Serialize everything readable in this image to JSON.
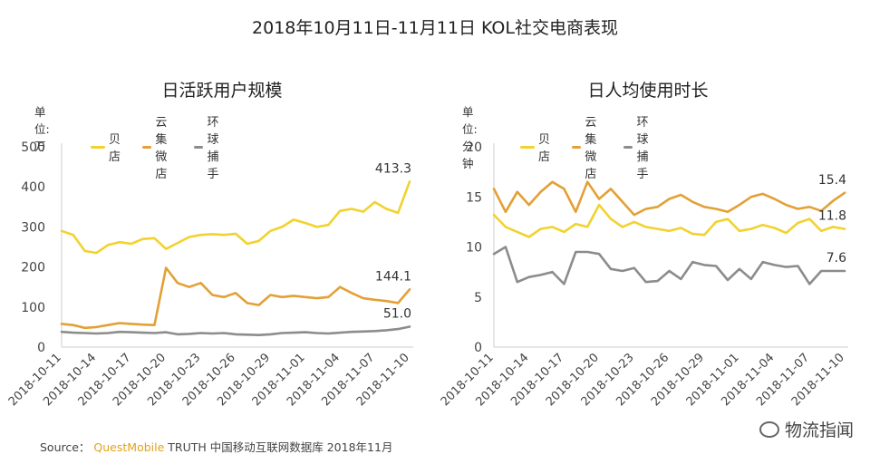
{
  "page_title": "2018年10月11日-11月11日 KOL社交电商表现",
  "source": {
    "prefix": "Source：",
    "brand": "QuestMobile",
    "suffix": " TRUTH 中国移动互联网数据库 2018年11月"
  },
  "watermark": "物流指闻",
  "colors": {
    "贝店": "#f2d22e",
    "云集微店": "#e3a035",
    "环球捕手": "#8c8c8c",
    "axis": "#cccccc",
    "text": "#333333"
  },
  "chart_data": [
    {
      "type": "line",
      "title": "日活跃用户规模",
      "unit_label": "单位: 万",
      "x_tick_labels": [
        "2018-10-11",
        "2018-10-14",
        "2018-10-17",
        "2018-10-20",
        "2018-10-23",
        "2018-10-26",
        "2018-10-29",
        "2018-11-01",
        "2018-11-04",
        "2018-11-07",
        "2018-11-10"
      ],
      "ylim": [
        0,
        500
      ],
      "y_ticks": [
        0,
        100,
        200,
        300,
        400,
        500
      ],
      "grid": false,
      "legend_position": "top",
      "series": [
        {
          "name": "贝店",
          "color": "#f2d22e",
          "end_label": "413.3",
          "values": [
            290,
            280,
            240,
            235,
            255,
            262,
            258,
            270,
            272,
            245,
            260,
            275,
            280,
            282,
            280,
            283,
            258,
            265,
            290,
            300,
            318,
            310,
            300,
            305,
            340,
            345,
            338,
            362,
            345,
            335,
            413.3
          ]
        },
        {
          "name": "云集微店",
          "color": "#e3a035",
          "end_label": "144.1",
          "values": [
            58,
            55,
            48,
            50,
            55,
            60,
            58,
            56,
            55,
            198,
            160,
            150,
            160,
            130,
            125,
            135,
            110,
            105,
            130,
            125,
            128,
            125,
            122,
            125,
            150,
            135,
            122,
            118,
            115,
            110,
            144.1
          ]
        },
        {
          "name": "环球捕手",
          "color": "#8c8c8c",
          "end_label": "51.0",
          "values": [
            38,
            36,
            35,
            34,
            35,
            38,
            37,
            36,
            35,
            37,
            32,
            33,
            35,
            34,
            35,
            32,
            31,
            30,
            32,
            35,
            36,
            37,
            35,
            34,
            36,
            38,
            39,
            40,
            42,
            45,
            51.0
          ]
        }
      ]
    },
    {
      "type": "line",
      "title": "日人均使用时长",
      "unit_label": "单位: 分钟",
      "x_tick_labels": [
        "2018-10-11",
        "2018-10-14",
        "2018-10-17",
        "2018-10-20",
        "2018-10-23",
        "2018-10-26",
        "2018-10-29",
        "2018-11-01",
        "2018-11-04",
        "2018-11-07",
        "2018-11-10"
      ],
      "ylim": [
        0,
        20
      ],
      "y_ticks": [
        0,
        5,
        10,
        15,
        20
      ],
      "grid": false,
      "legend_position": "top",
      "series": [
        {
          "name": "贝店",
          "color": "#f2d22e",
          "end_label": "11.8",
          "values": [
            13.2,
            12.0,
            11.5,
            11.0,
            11.8,
            12.0,
            11.5,
            12.3,
            12.0,
            14.2,
            12.8,
            12.0,
            12.5,
            12.0,
            11.8,
            11.6,
            11.9,
            11.3,
            11.2,
            12.5,
            12.8,
            11.6,
            11.8,
            12.2,
            11.9,
            11.4,
            12.4,
            12.8,
            11.6,
            12.0,
            11.8
          ]
        },
        {
          "name": "云集微店",
          "color": "#e3a035",
          "end_label": "15.4",
          "values": [
            15.8,
            13.5,
            15.5,
            14.2,
            15.5,
            16.5,
            15.8,
            13.5,
            16.5,
            14.8,
            15.8,
            14.5,
            13.2,
            13.8,
            14.0,
            14.8,
            15.2,
            14.5,
            14.0,
            13.8,
            13.5,
            14.2,
            15.0,
            15.3,
            14.8,
            14.2,
            13.8,
            14.0,
            13.6,
            14.6,
            15.4
          ]
        },
        {
          "name": "环球捕手",
          "color": "#8c8c8c",
          "end_label": "7.6",
          "values": [
            9.3,
            10.0,
            6.5,
            7.0,
            7.2,
            7.5,
            6.3,
            9.5,
            9.5,
            9.3,
            7.8,
            7.6,
            7.9,
            6.5,
            6.6,
            7.6,
            6.8,
            8.5,
            8.2,
            8.1,
            6.7,
            7.8,
            6.8,
            8.5,
            8.2,
            8.0,
            8.1,
            6.3,
            7.6,
            7.6,
            7.6
          ]
        }
      ]
    }
  ]
}
